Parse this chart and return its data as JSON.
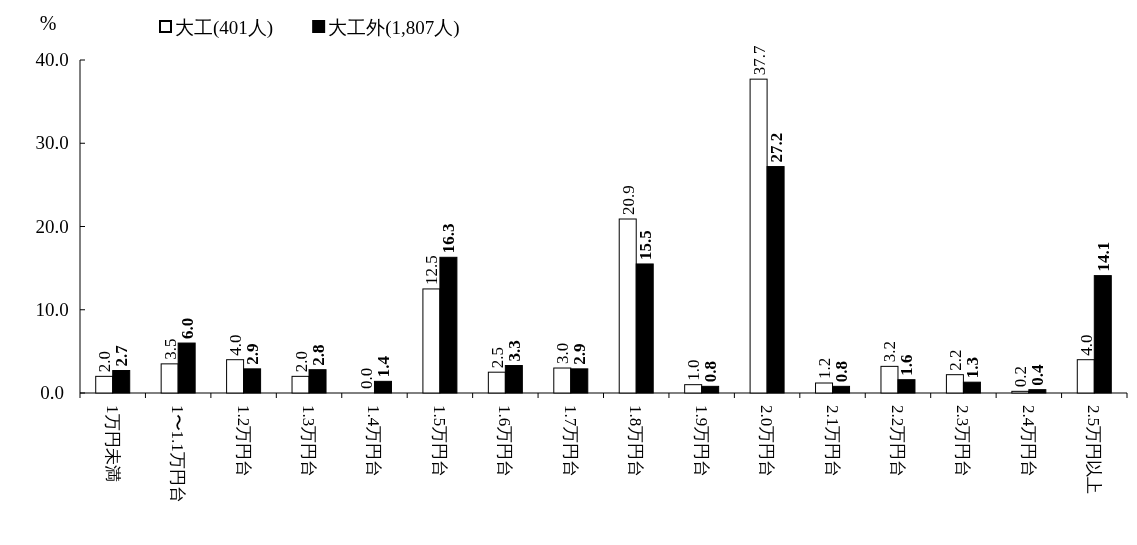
{
  "chart_data": {
    "type": "bar",
    "ylabel": "%",
    "categories": [
      "1万円未満",
      "1〜1.1万円台",
      "1.2万円台",
      "1.3万円台",
      "1.4万円台",
      "1.5万円台",
      "1.6万円台",
      "1.7万円台",
      "1.8万円台",
      "1.9万円台",
      "2.0万円台",
      "2.1万円台",
      "2.2万円台",
      "2.3万円台",
      "2.4万円台",
      "2.5万円以上"
    ],
    "series": [
      {
        "name": "大工(401人)",
        "color": "#ffffff",
        "values": [
          2,
          3.5,
          4,
          2,
          0,
          12.5,
          2.5,
          3,
          20.9,
          1,
          37.7,
          1.2,
          3.2,
          2.2,
          0.2,
          4
        ],
        "value_labels": [
          "2.0",
          "3.5",
          "4.0",
          "2.0",
          "0.0",
          "12.5",
          "2.5",
          "3.0",
          "20.9",
          "1.0",
          "37.7",
          "1.2",
          "3.2",
          "2.2",
          "0.2",
          "4.0"
        ]
      },
      {
        "name": "大工外(1,807人)",
        "color": "#000000",
        "values": [
          2.7,
          6,
          2.9,
          2.8,
          1.4,
          16.3,
          3.3,
          2.9,
          15.5,
          0.8,
          27.2,
          0.8,
          1.6,
          1.3,
          0.4,
          14.1
        ],
        "value_labels": [
          "2.7",
          "6.0",
          "2.9",
          "2.8",
          "1.4",
          "16.3",
          "3.3",
          "2.9",
          "15.5",
          "0.8",
          "27.2",
          "0.8",
          "1.6",
          "1.3",
          "0.4",
          "14.1"
        ]
      }
    ],
    "ylim": [
      0,
      40
    ],
    "yticks": [
      {
        "value": 0,
        "label": "0.0"
      },
      {
        "value": 10,
        "label": "10.0"
      },
      {
        "value": 20,
        "label": "20.0"
      },
      {
        "value": 30,
        "label": "30.0"
      },
      {
        "value": 40,
        "label": "40.0"
      }
    ],
    "legend": "top left"
  }
}
